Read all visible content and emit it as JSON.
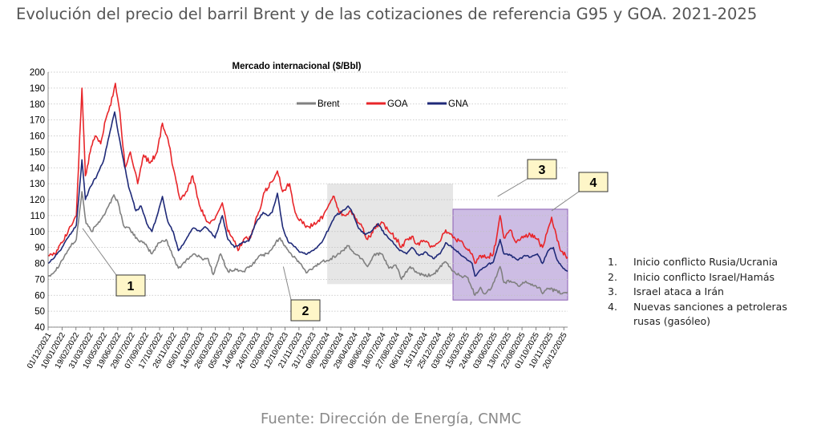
{
  "page_title": "Evolución del precio del barril Brent y de las cotizaciones de referencia G95 y GOA. 2021-2025",
  "source": "Fuente: Dirección de Energía, CNMC",
  "notes": [
    {
      "num": "1.",
      "text": "Inicio conflicto Rusia/Ucrania"
    },
    {
      "num": "2.",
      "text": "Inicio conflicto Israel/Hamás"
    },
    {
      "num": "3.",
      "text": "Israel ataca a Irán"
    },
    {
      "num": "4.",
      "text": "Nuevas sanciones a petroleras rusas (gasóleo)"
    }
  ],
  "chart_data": {
    "type": "line",
    "title": "Mercado internacional ($/Bbl)",
    "xlabel": "",
    "ylabel": "",
    "ylim": [
      40,
      200
    ],
    "yticks": [
      40,
      50,
      60,
      70,
      80,
      90,
      100,
      110,
      120,
      130,
      140,
      150,
      160,
      170,
      180,
      190,
      200
    ],
    "xlim": [
      "2021-12-01",
      "2025-12-31"
    ],
    "xticks": [
      "01/12/2021",
      "10/01/2022",
      "19/02/2022",
      "31/03/2022",
      "10/05/2022",
      "19/06/2022",
      "29/07/2022",
      "07/09/2022",
      "17/10/2022",
      "26/11/2022",
      "05/01/2023",
      "14/02/2023",
      "26/03/2023",
      "05/05/2023",
      "14/06/2023",
      "24/07/2023",
      "02/09/2023",
      "12/10/2023",
      "21/11/2023",
      "31/12/2023",
      "09/02/2024",
      "20/03/2024",
      "29/04/2024",
      "08/06/2024",
      "18/07/2024",
      "27/08/2024",
      "06/10/2024",
      "15/11/2024",
      "25/12/2024",
      "03/02/2025",
      "15/03/2025",
      "24/04/2025",
      "03/06/2025",
      "13/07/2025",
      "22/08/2025",
      "01/10/2025",
      "10/11/2025",
      "20/12/2025"
    ],
    "grid": true,
    "legend_position": "top-center",
    "series": [
      {
        "name": "Brent",
        "color": "#808080",
        "points": [
          [
            "2021-12-01",
            72
          ],
          [
            "2021-12-20",
            75
          ],
          [
            "2022-01-10",
            82
          ],
          [
            "2022-02-01",
            90
          ],
          [
            "2022-02-20",
            95
          ],
          [
            "2022-03-08",
            125
          ],
          [
            "2022-03-20",
            105
          ],
          [
            "2022-04-05",
            100
          ],
          [
            "2022-04-25",
            106
          ],
          [
            "2022-05-15",
            112
          ],
          [
            "2022-06-08",
            123
          ],
          [
            "2022-06-20",
            118
          ],
          [
            "2022-07-05",
            104
          ],
          [
            "2022-07-25",
            101
          ],
          [
            "2022-08-15",
            95
          ],
          [
            "2022-09-05",
            92
          ],
          [
            "2022-09-25",
            86
          ],
          [
            "2022-10-15",
            93
          ],
          [
            "2022-11-05",
            95
          ],
          [
            "2022-11-25",
            84
          ],
          [
            "2022-12-10",
            77
          ],
          [
            "2023-01-01",
            82
          ],
          [
            "2023-01-25",
            86
          ],
          [
            "2023-02-15",
            83
          ],
          [
            "2023-03-05",
            83
          ],
          [
            "2023-03-20",
            73
          ],
          [
            "2023-04-10",
            86
          ],
          [
            "2023-05-01",
            75
          ],
          [
            "2023-05-25",
            76
          ],
          [
            "2023-06-15",
            75
          ],
          [
            "2023-07-10",
            79
          ],
          [
            "2023-08-01",
            85
          ],
          [
            "2023-08-25",
            86
          ],
          [
            "2023-09-15",
            93
          ],
          [
            "2023-09-28",
            96
          ],
          [
            "2023-10-15",
            90
          ],
          [
            "2023-11-05",
            84
          ],
          [
            "2023-11-25",
            80
          ],
          [
            "2023-12-12",
            74
          ],
          [
            "2024-01-05",
            78
          ],
          [
            "2024-01-25",
            81
          ],
          [
            "2024-02-20",
            83
          ],
          [
            "2024-03-15",
            86
          ],
          [
            "2024-04-10",
            91
          ],
          [
            "2024-04-30",
            86
          ],
          [
            "2024-05-20",
            83
          ],
          [
            "2024-06-05",
            78
          ],
          [
            "2024-06-25",
            86
          ],
          [
            "2024-07-15",
            86
          ],
          [
            "2024-08-05",
            77
          ],
          [
            "2024-08-25",
            79
          ],
          [
            "2024-09-10",
            70
          ],
          [
            "2024-10-05",
            78
          ],
          [
            "2024-10-25",
            74
          ],
          [
            "2024-11-15",
            72
          ],
          [
            "2024-12-10",
            73
          ],
          [
            "2025-01-15",
            81
          ],
          [
            "2025-02-05",
            75
          ],
          [
            "2025-03-01",
            72
          ],
          [
            "2025-03-20",
            71
          ],
          [
            "2025-04-09",
            60
          ],
          [
            "2025-04-25",
            65
          ],
          [
            "2025-05-05",
            61
          ],
          [
            "2025-05-25",
            64
          ],
          [
            "2025-06-13",
            74
          ],
          [
            "2025-06-20",
            78
          ],
          [
            "2025-07-01",
            68
          ],
          [
            "2025-07-20",
            69
          ],
          [
            "2025-08-10",
            66
          ],
          [
            "2025-08-30",
            68
          ],
          [
            "2025-09-20",
            67
          ],
          [
            "2025-10-10",
            65
          ],
          [
            "2025-10-20",
            61
          ],
          [
            "2025-11-05",
            64
          ],
          [
            "2025-11-25",
            63
          ],
          [
            "2025-12-15",
            61
          ],
          [
            "2025-12-31",
            62
          ]
        ]
      },
      {
        "name": "GOA",
        "color": "#e8262a",
        "points": [
          [
            "2021-12-01",
            85
          ],
          [
            "2021-12-20",
            86
          ],
          [
            "2022-01-10",
            93
          ],
          [
            "2022-02-01",
            103
          ],
          [
            "2022-02-20",
            110
          ],
          [
            "2022-03-08",
            190
          ],
          [
            "2022-03-18",
            135
          ],
          [
            "2022-04-01",
            150
          ],
          [
            "2022-04-15",
            160
          ],
          [
            "2022-05-01",
            155
          ],
          [
            "2022-05-15",
            170
          ],
          [
            "2022-06-05",
            185
          ],
          [
            "2022-06-12",
            193
          ],
          [
            "2022-06-25",
            175
          ],
          [
            "2022-07-10",
            140
          ],
          [
            "2022-07-25",
            150
          ],
          [
            "2022-08-15",
            130
          ],
          [
            "2022-09-01",
            148
          ],
          [
            "2022-09-20",
            143
          ],
          [
            "2022-10-10",
            150
          ],
          [
            "2022-10-25",
            168
          ],
          [
            "2022-11-10",
            158
          ],
          [
            "2022-11-25",
            140
          ],
          [
            "2022-12-15",
            120
          ],
          [
            "2023-01-01",
            125
          ],
          [
            "2023-01-20",
            135
          ],
          [
            "2023-02-05",
            120
          ],
          [
            "2023-02-20",
            110
          ],
          [
            "2023-03-10",
            105
          ],
          [
            "2023-03-25",
            108
          ],
          [
            "2023-04-15",
            118
          ],
          [
            "2023-05-01",
            100
          ],
          [
            "2023-05-15",
            96
          ],
          [
            "2023-05-30",
            88
          ],
          [
            "2023-06-15",
            95
          ],
          [
            "2023-07-05",
            96
          ],
          [
            "2023-07-25",
            110
          ],
          [
            "2023-08-15",
            125
          ],
          [
            "2023-09-01",
            131
          ],
          [
            "2023-09-20",
            138
          ],
          [
            "2023-10-05",
            125
          ],
          [
            "2023-10-25",
            130
          ],
          [
            "2023-11-10",
            112
          ],
          [
            "2023-12-01",
            105
          ],
          [
            "2023-12-20",
            103
          ],
          [
            "2024-01-10",
            105
          ],
          [
            "2024-01-30",
            110
          ],
          [
            "2024-02-15",
            117
          ],
          [
            "2024-03-01",
            122
          ],
          [
            "2024-03-15",
            112
          ],
          [
            "2024-04-01",
            110
          ],
          [
            "2024-04-15",
            113
          ],
          [
            "2024-05-01",
            108
          ],
          [
            "2024-05-20",
            103
          ],
          [
            "2024-06-05",
            95
          ],
          [
            "2024-06-25",
            102
          ],
          [
            "2024-07-15",
            106
          ],
          [
            "2024-08-05",
            100
          ],
          [
            "2024-08-25",
            96
          ],
          [
            "2024-09-10",
            90
          ],
          [
            "2024-09-25",
            95
          ],
          [
            "2024-10-10",
            97
          ],
          [
            "2024-10-25",
            92
          ],
          [
            "2024-11-15",
            94
          ],
          [
            "2024-12-05",
            91
          ],
          [
            "2024-12-25",
            93
          ],
          [
            "2025-01-15",
            101
          ],
          [
            "2025-02-05",
            96
          ],
          [
            "2025-02-25",
            94
          ],
          [
            "2025-03-15",
            89
          ],
          [
            "2025-04-01",
            86
          ],
          [
            "2025-04-09",
            80
          ],
          [
            "2025-04-25",
            85
          ],
          [
            "2025-05-15",
            84
          ],
          [
            "2025-06-01",
            86
          ],
          [
            "2025-06-13",
            100
          ],
          [
            "2025-06-20",
            110
          ],
          [
            "2025-07-01",
            96
          ],
          [
            "2025-07-20",
            101
          ],
          [
            "2025-08-05",
            93
          ],
          [
            "2025-08-25",
            96
          ],
          [
            "2025-09-15",
            98
          ],
          [
            "2025-10-05",
            95
          ],
          [
            "2025-10-20",
            90
          ],
          [
            "2025-11-05",
            102
          ],
          [
            "2025-11-15",
            109
          ],
          [
            "2025-11-28",
            98
          ],
          [
            "2025-12-10",
            88
          ],
          [
            "2025-12-31",
            84
          ]
        ]
      },
      {
        "name": "GNA",
        "color": "#1f2a78",
        "points": [
          [
            "2021-12-01",
            80
          ],
          [
            "2021-12-20",
            84
          ],
          [
            "2022-01-10",
            90
          ],
          [
            "2022-02-01",
            98
          ],
          [
            "2022-02-20",
            104
          ],
          [
            "2022-03-08",
            145
          ],
          [
            "2022-03-18",
            120
          ],
          [
            "2022-04-01",
            128
          ],
          [
            "2022-04-20",
            135
          ],
          [
            "2022-05-10",
            145
          ],
          [
            "2022-05-25",
            160
          ],
          [
            "2022-06-10",
            175
          ],
          [
            "2022-06-20",
            162
          ],
          [
            "2022-07-05",
            145
          ],
          [
            "2022-07-20",
            128
          ],
          [
            "2022-08-10",
            113
          ],
          [
            "2022-08-25",
            116
          ],
          [
            "2022-09-10",
            105
          ],
          [
            "2022-09-25",
            100
          ],
          [
            "2022-10-10",
            110
          ],
          [
            "2022-10-25",
            122
          ],
          [
            "2022-11-10",
            106
          ],
          [
            "2022-11-25",
            100
          ],
          [
            "2022-12-10",
            88
          ],
          [
            "2023-01-01",
            95
          ],
          [
            "2023-01-20",
            102
          ],
          [
            "2023-02-10",
            100
          ],
          [
            "2023-02-25",
            103
          ],
          [
            "2023-03-10",
            100
          ],
          [
            "2023-03-25",
            96
          ],
          [
            "2023-04-15",
            110
          ],
          [
            "2023-05-01",
            95
          ],
          [
            "2023-05-20",
            90
          ],
          [
            "2023-06-10",
            93
          ],
          [
            "2023-06-30",
            94
          ],
          [
            "2023-07-20",
            105
          ],
          [
            "2023-08-10",
            112
          ],
          [
            "2023-08-25",
            110
          ],
          [
            "2023-09-05",
            112
          ],
          [
            "2023-09-20",
            124
          ],
          [
            "2023-10-05",
            103
          ],
          [
            "2023-10-20",
            94
          ],
          [
            "2023-11-05",
            91
          ],
          [
            "2023-11-25",
            87
          ],
          [
            "2023-12-15",
            86
          ],
          [
            "2024-01-05",
            89
          ],
          [
            "2024-01-25",
            93
          ],
          [
            "2024-02-15",
            102
          ],
          [
            "2024-03-05",
            110
          ],
          [
            "2024-03-20",
            112
          ],
          [
            "2024-04-10",
            116
          ],
          [
            "2024-04-25",
            111
          ],
          [
            "2024-05-10",
            102
          ],
          [
            "2024-05-30",
            98
          ],
          [
            "2024-06-15",
            100
          ],
          [
            "2024-07-05",
            105
          ],
          [
            "2024-07-25",
            98
          ],
          [
            "2024-08-15",
            94
          ],
          [
            "2024-09-05",
            88
          ],
          [
            "2024-09-25",
            86
          ],
          [
            "2024-10-10",
            90
          ],
          [
            "2024-10-30",
            85
          ],
          [
            "2024-11-20",
            87
          ],
          [
            "2024-12-10",
            83
          ],
          [
            "2024-12-30",
            86
          ],
          [
            "2025-01-15",
            93
          ],
          [
            "2025-02-05",
            90
          ],
          [
            "2025-02-25",
            86
          ],
          [
            "2025-03-15",
            83
          ],
          [
            "2025-04-01",
            80
          ],
          [
            "2025-04-09",
            72
          ],
          [
            "2025-04-25",
            76
          ],
          [
            "2025-05-15",
            79
          ],
          [
            "2025-06-01",
            81
          ],
          [
            "2025-06-13",
            90
          ],
          [
            "2025-06-20",
            95
          ],
          [
            "2025-07-01",
            86
          ],
          [
            "2025-07-20",
            85
          ],
          [
            "2025-08-10",
            82
          ],
          [
            "2025-08-30",
            85
          ],
          [
            "2025-09-15",
            84
          ],
          [
            "2025-10-05",
            86
          ],
          [
            "2025-10-20",
            80
          ],
          [
            "2025-11-05",
            88
          ],
          [
            "2025-11-20",
            90
          ],
          [
            "2025-12-01",
            82
          ],
          [
            "2025-12-15",
            78
          ],
          [
            "2025-12-31",
            75
          ]
        ]
      }
    ],
    "shaded_ranges": [
      {
        "from": "2024-02-10",
        "to": "2025-02-05",
        "ymin": 67,
        "ymax": 130,
        "color": "#e6e6e6"
      },
      {
        "from": "2025-02-05",
        "to": "2025-12-31",
        "ymin": 57,
        "ymax": 114,
        "color": "#cdbde4"
      }
    ],
    "annotations": [
      {
        "label": "1",
        "target_x": "2022-03-10",
        "target_y": 102
      },
      {
        "label": "2",
        "target_x": "2023-10-07",
        "target_y": 78
      },
      {
        "label": "3",
        "target_x": "2025-06-13",
        "target_y": 122
      },
      {
        "label": "4",
        "target_x": "2025-11-15",
        "target_y": 113
      }
    ]
  }
}
